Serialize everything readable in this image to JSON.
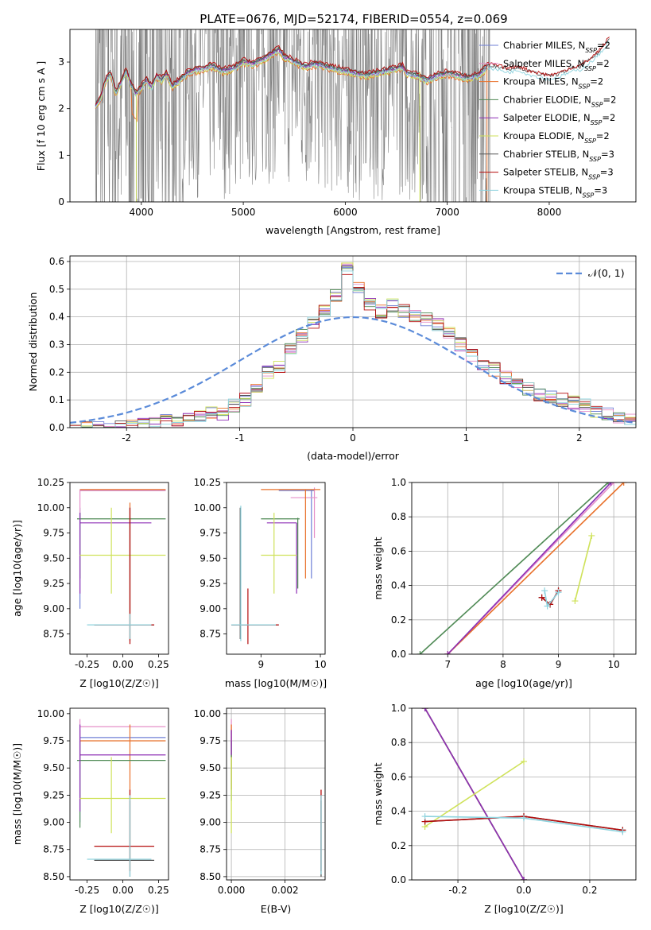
{
  "figure": {
    "title": "PLATE=0676, MJD=52174, FIBERID=0554, z=0.069"
  },
  "colors": {
    "Chabrier MILES": "#6f7fd6",
    "Salpeter MILES": "#e58fc9",
    "Kroupa MILES": "#e8702a",
    "Chabrier ELODIE": "#4f8a55",
    "Salpeter ELODIE": "#8e2fb5",
    "Kroupa ELODIE": "#cfe25a",
    "Chabrier STELIB": "#555555",
    "Salpeter STELIB": "#b50d0d",
    "Kroupa STELIB": "#8ed3de",
    "data": "#808080",
    "normal": "#5b8bd9"
  },
  "chart_data": [
    {
      "id": "spectrum",
      "type": "line",
      "title": "PLATE=0676, MJD=52174, FIBERID=0554, z=0.069",
      "xlabel": "wavelength [Angstrom, rest frame]",
      "ylabel": "Flux [f_λ 10^-17 erg cm^-2 s^-1 A^-1]",
      "xlim": [
        3300,
        8850
      ],
      "ylim": [
        0,
        3.7
      ],
      "xticks": [
        "4000",
        "5000",
        "6000",
        "7000",
        "8000"
      ],
      "yticks": [
        "0",
        "1",
        "2",
        "3"
      ],
      "legend_position": "top-right",
      "legend": [
        {
          "name": "Chabrier MILES",
          "sub": "SSP",
          "n": "2"
        },
        {
          "name": "Salpeter MILES",
          "sub": "SSP",
          "n": "2"
        },
        {
          "name": "Kroupa MILES",
          "sub": "SSP",
          "n": "2"
        },
        {
          "name": "Chabrier ELODIE",
          "sub": "SSP",
          "n": "2"
        },
        {
          "name": "Salpeter ELODIE",
          "sub": "SSP",
          "n": "2"
        },
        {
          "name": "Kroupa ELODIE",
          "sub": "SSP",
          "n": "2"
        },
        {
          "name": "Chabrier STELIB",
          "sub": "SSP",
          "n": "3"
        },
        {
          "name": "Salpeter STELIB",
          "sub": "SSP",
          "n": "3"
        },
        {
          "name": "Kroupa STELIB",
          "sub": "SSP",
          "n": "3"
        }
      ],
      "model_shape": {
        "x": [
          3550,
          3600,
          3650,
          3700,
          3750,
          3800,
          3850,
          3900,
          3950,
          4000,
          4050,
          4100,
          4150,
          4200,
          4250,
          4300,
          4350,
          4400,
          4450,
          4500,
          4600,
          4700,
          4800,
          4900,
          5000,
          5100,
          5200,
          5300,
          5350,
          5400,
          5500,
          5600,
          5700,
          5800,
          5900,
          6000,
          6100,
          6200,
          6300,
          6400,
          6500,
          6563,
          6600,
          6700,
          6800,
          6900,
          7000,
          7100,
          7200,
          7300,
          7400,
          7500,
          7600,
          7700,
          7800,
          7900,
          8000,
          8100,
          8200,
          8300,
          8400,
          8500,
          8600
        ],
        "y": [
          2.05,
          2.2,
          2.6,
          2.75,
          2.3,
          2.55,
          2.8,
          2.5,
          2.3,
          2.45,
          2.6,
          2.45,
          2.7,
          2.6,
          2.75,
          2.45,
          2.55,
          2.65,
          2.75,
          2.8,
          2.85,
          2.9,
          2.8,
          2.85,
          3.0,
          2.95,
          3.05,
          3.2,
          3.25,
          3.1,
          3.0,
          2.9,
          2.95,
          2.9,
          2.85,
          2.8,
          2.75,
          2.7,
          2.75,
          2.8,
          2.85,
          2.9,
          2.75,
          2.7,
          2.6,
          2.7,
          2.75,
          2.7,
          2.65,
          2.7,
          2.9,
          2.85,
          2.8,
          2.85,
          2.75,
          2.7,
          2.65,
          2.7,
          2.8,
          2.85,
          3.0,
          3.2,
          3.5
        ]
      },
      "data_range": [
        3550,
        7420
      ]
    },
    {
      "id": "residuals",
      "type": "line",
      "xlabel": "(data-model)/error",
      "ylabel": "Normed distribution",
      "xlim": [
        -2.5,
        2.5
      ],
      "ylim": [
        0,
        0.62
      ],
      "xticks": [
        "-2",
        "-1",
        "0",
        "1",
        "2"
      ],
      "yticks": [
        "0.0",
        "0.1",
        "0.2",
        "0.3",
        "0.4",
        "0.5",
        "0.6"
      ],
      "legend_position": "top-right",
      "normal_label": "𝒩(0, 1)",
      "hist": {
        "bin_edges_start": -2.5,
        "bin_width": 0.1,
        "values": [
          0.0,
          0.0,
          0.0,
          0.0,
          0.0,
          0.01,
          0.02,
          0.02,
          0.03,
          0.03,
          0.03,
          0.04,
          0.05,
          0.05,
          0.08,
          0.1,
          0.15,
          0.2,
          0.22,
          0.28,
          0.33,
          0.38,
          0.42,
          0.48,
          0.57,
          0.5,
          0.45,
          0.42,
          0.44,
          0.42,
          0.4,
          0.39,
          0.37,
          0.34,
          0.3,
          0.26,
          0.22,
          0.21,
          0.18,
          0.16,
          0.14,
          0.12,
          0.11,
          0.1,
          0.09,
          0.08,
          0.06,
          0.05,
          0.04,
          0.03
        ]
      }
    },
    {
      "id": "age-Z",
      "type": "scatter",
      "xlabel": "Z [log10(Z/Z☉)]",
      "ylabel": "age [log10(age/yr)]",
      "xlim": [
        -0.37,
        0.32
      ],
      "ylim": [
        8.55,
        10.25
      ],
      "xticks": [
        "-0.25",
        "0.00",
        "0.25"
      ],
      "yticks": [
        "8.75",
        "9.00",
        "9.25",
        "9.50",
        "9.75",
        "10.00",
        "10.25"
      ]
    },
    {
      "id": "age-mass",
      "type": "scatter",
      "xlabel": "mass [log10(M/M☉)]",
      "xlim": [
        8.42,
        10.08
      ],
      "ylim": [
        8.55,
        10.25
      ],
      "xticks": [
        "9",
        "10"
      ],
      "yticks": [
        "8.75",
        "9.00",
        "9.25",
        "9.50",
        "9.75",
        "10.00",
        "10.25"
      ]
    },
    {
      "id": "weight-age",
      "type": "line",
      "xlabel": "age [log10(age/yr)]",
      "ylabel": "mass weight",
      "xlim": [
        6.35,
        10.4
      ],
      "ylim": [
        0,
        1
      ],
      "xticks": [
        "7",
        "8",
        "9",
        "10"
      ],
      "yticks": [
        "0.0",
        "0.2",
        "0.4",
        "0.6",
        "0.8",
        "1.0"
      ],
      "series": [
        {
          "name": "Chabrier MILES",
          "x": [
            7.0,
            9.95
          ],
          "y": [
            0.0,
            1.0
          ]
        },
        {
          "name": "Salpeter MILES",
          "x": [
            7.0,
            10.0
          ],
          "y": [
            0.0,
            1.0
          ]
        },
        {
          "name": "Kroupa MILES",
          "x": [
            7.0,
            10.18
          ],
          "y": [
            0.0,
            1.0
          ]
        },
        {
          "name": "Chabrier ELODIE",
          "x": [
            6.5,
            9.9
          ],
          "y": [
            0.0,
            1.0
          ]
        },
        {
          "name": "Salpeter ELODIE",
          "x": [
            7.0,
            9.95
          ],
          "y": [
            0.0,
            1.0
          ]
        },
        {
          "name": "Kroupa ELODIE",
          "x": [
            9.3,
            9.6
          ],
          "y": [
            0.31,
            0.69
          ]
        },
        {
          "name": "Chabrier STELIB",
          "x": [
            8.7,
            8.85,
            9.0
          ],
          "y": [
            0.33,
            0.29,
            0.37
          ]
        },
        {
          "name": "Salpeter STELIB",
          "x": [
            8.7,
            8.85,
            9.0
          ],
          "y": [
            0.33,
            0.29,
            0.37
          ]
        },
        {
          "name": "Kroupa STELIB",
          "x": [
            8.75,
            8.8,
            9.0
          ],
          "y": [
            0.37,
            0.28,
            0.36
          ]
        }
      ]
    },
    {
      "id": "mass-Z",
      "type": "scatter",
      "xlabel": "Z [log10(Z/Z☉)]",
      "ylabel": "mass [log10(M/M☉)]",
      "xlim": [
        -0.37,
        0.32
      ],
      "ylim": [
        8.47,
        10.05
      ],
      "xticks": [
        "-0.25",
        "0.00",
        "0.25"
      ],
      "yticks": [
        "8.50",
        "8.75",
        "9.00",
        "9.25",
        "9.50",
        "9.75",
        "10.00"
      ]
    },
    {
      "id": "mass-ebv",
      "type": "scatter",
      "xlabel": "E(B-V)",
      "xlim": [
        -0.00018,
        0.0035
      ],
      "ylim": [
        8.47,
        10.05
      ],
      "xticks": [
        "0.000",
        "0.002"
      ],
      "yticks": [
        "8.50",
        "8.75",
        "9.00",
        "9.25",
        "9.50",
        "9.75",
        "10.00"
      ]
    },
    {
      "id": "weight-Z",
      "type": "line",
      "xlabel": "Z [log10(Z/Z☉)]",
      "ylabel": "mass weight",
      "xlim": [
        -0.34,
        0.34
      ],
      "ylim": [
        0,
        1
      ],
      "xticks": [
        "-0.2",
        "0.0",
        "0.2"
      ],
      "yticks": [
        "0.0",
        "0.2",
        "0.4",
        "0.6",
        "0.8",
        "1.0"
      ],
      "series": [
        {
          "name": "Chabrier MILES",
          "x": [
            -0.3,
            0.0
          ],
          "y": [
            1.0,
            0.0
          ]
        },
        {
          "name": "Salpeter MILES",
          "x": [
            -0.3,
            0.0
          ],
          "y": [
            1.0,
            0.0
          ]
        },
        {
          "name": "Kroupa MILES",
          "x": [
            -0.3,
            0.0
          ],
          "y": [
            1.0,
            0.0
          ]
        },
        {
          "name": "Chabrier ELODIE",
          "x": [
            -0.3,
            0.0
          ],
          "y": [
            1.0,
            0.0
          ]
        },
        {
          "name": "Salpeter ELODIE",
          "x": [
            -0.3,
            0.0
          ],
          "y": [
            1.0,
            0.0
          ]
        },
        {
          "name": "Kroupa ELODIE",
          "x": [
            -0.3,
            0.0
          ],
          "y": [
            0.31,
            0.69
          ]
        },
        {
          "name": "Chabrier STELIB",
          "x": [
            -0.3,
            0.0,
            0.3
          ],
          "y": [
            0.34,
            0.37,
            0.29
          ]
        },
        {
          "name": "Salpeter STELIB",
          "x": [
            -0.3,
            0.0,
            0.3
          ],
          "y": [
            0.34,
            0.37,
            0.29
          ]
        },
        {
          "name": "Kroupa STELIB",
          "x": [
            -0.3,
            0.0,
            0.3
          ],
          "y": [
            0.37,
            0.36,
            0.28
          ]
        }
      ]
    }
  ],
  "estimates": [
    {
      "name": "Chabrier MILES",
      "Z": [
        -0.3,
        0.3
      ],
      "age": [
        10.17,
        10.17
      ],
      "mass": [
        9.78,
        9.78
      ],
      "ebv": 0.0
    },
    {
      "name": "Salpeter MILES",
      "Z": [
        -0.3,
        0.3
      ],
      "age": [
        9.85,
        10.2
      ],
      "mass": [
        9.88,
        9.88
      ],
      "ebv": 0.0
    },
    {
      "name": "Kroupa MILES",
      "Z": [
        -0.3,
        0.3
      ],
      "age": [
        10.18,
        10.18
      ],
      "mass": [
        9.75,
        9.75
      ],
      "ebv": 0.0
    },
    {
      "name": "Chabrier ELODIE",
      "Z": [
        -0.32,
        0.3
      ],
      "age": [
        9.89,
        9.89
      ],
      "mass": [
        9.57,
        9.57
      ],
      "ebv": 0.0
    },
    {
      "name": "Salpeter ELODIE",
      "Z": [
        -0.3,
        0.2
      ],
      "age": [
        9.85,
        9.85
      ],
      "mass": [
        9.62,
        9.62
      ],
      "ebv": 0.0
    },
    {
      "name": "Kroupa ELODIE",
      "Z": [
        -0.3,
        0.3
      ],
      "age": [
        9.53,
        9.53
      ],
      "mass": [
        9.22,
        9.22
      ],
      "ebv": 0.0
    },
    {
      "name": "Chabrier STELIB",
      "Z": [
        -0.2,
        0.22
      ],
      "age": [
        8.84,
        8.84
      ],
      "mass": [
        8.65,
        8.65
      ],
      "ebv": 0.00335
    },
    {
      "name": "Salpeter STELIB",
      "Z": [
        -0.2,
        0.22
      ],
      "age": [
        8.84,
        8.84
      ],
      "mass": [
        8.78,
        8.78
      ],
      "ebv": 0.00335
    },
    {
      "name": "Kroupa STELIB",
      "Z": [
        -0.25,
        0.2
      ],
      "age": [
        8.84,
        8.84
      ],
      "mass": [
        8.66,
        8.66
      ],
      "ebv": 0.00335
    }
  ]
}
